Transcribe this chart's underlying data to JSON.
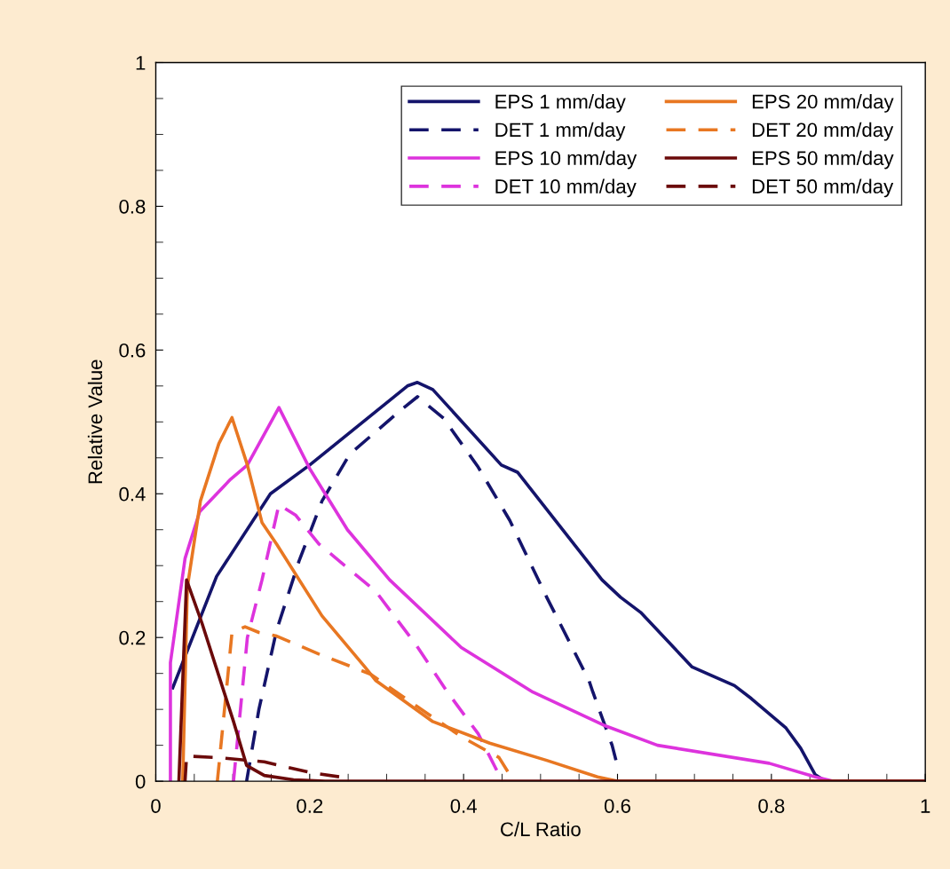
{
  "chart_data": {
    "type": "line",
    "xlabel": "C/L Ratio",
    "ylabel": "Relative Value",
    "xlim": [
      0,
      1
    ],
    "xticks": [
      0,
      0.2,
      0.4,
      0.6,
      0.8,
      1
    ],
    "ylim": [
      0,
      1
    ],
    "yticks": [
      0,
      0.2,
      0.4,
      0.6,
      0.8,
      1
    ],
    "grid": false,
    "legend": "top right",
    "marker": "none",
    "series": [
      {
        "name": "EPS 1 mm/day",
        "color": "#14146b",
        "line_style": "solid",
        "x": [
          0.022,
          0.079,
          0.149,
          0.2,
          0.327,
          0.34,
          0.36,
          0.449,
          0.47,
          0.58,
          0.604,
          0.63,
          0.697,
          0.752,
          0.774,
          0.819,
          0.838,
          0.857,
          0.87,
          1.0
        ],
        "values": [
          0.13,
          0.285,
          0.4,
          0.44,
          0.55,
          0.555,
          0.545,
          0.44,
          0.43,
          0.28,
          0.256,
          0.235,
          0.159,
          0.133,
          0.115,
          0.074,
          0.046,
          0.009,
          0,
          0
        ]
      },
      {
        "name": "DET 1 mm/day",
        "color": "#14146b",
        "line_style": "dashed",
        "x": [
          0.118,
          0.134,
          0.157,
          0.186,
          0.216,
          0.252,
          0.319,
          0.34,
          0.374,
          0.419,
          0.46,
          0.508,
          0.563,
          0.568,
          0.593,
          0.599
        ],
        "values": [
          0,
          0.1,
          0.21,
          0.306,
          0.39,
          0.455,
          0.517,
          0.535,
          0.505,
          0.437,
          0.363,
          0.256,
          0.14,
          0.124,
          0.05,
          0.025
        ]
      },
      {
        "name": "EPS 10 mm/day",
        "color": "#dd33dd",
        "line_style": "solid",
        "x": [
          0.019,
          0.019,
          0.038,
          0.057,
          0.097,
          0.119,
          0.16,
          0.2,
          0.249,
          0.304,
          0.397,
          0.49,
          0.582,
          0.652,
          0.797,
          0.857,
          0.88,
          1.0
        ],
        "values": [
          0,
          0.165,
          0.31,
          0.375,
          0.42,
          0.44,
          0.52,
          0.435,
          0.35,
          0.28,
          0.186,
          0.124,
          0.078,
          0.05,
          0.025,
          0.006,
          0,
          0
        ]
      },
      {
        "name": "DET 10 mm/day",
        "color": "#dd33dd",
        "line_style": "dashed",
        "x": [
          0.101,
          0.119,
          0.138,
          0.16,
          0.182,
          0.212,
          0.286,
          0.338,
          0.379,
          0.419,
          0.446
        ],
        "values": [
          0,
          0.2,
          0.28,
          0.385,
          0.37,
          0.33,
          0.264,
          0.19,
          0.124,
          0.066,
          0.009
        ]
      },
      {
        "name": "EPS 20 mm/day",
        "color": "#e87722",
        "line_style": "solid",
        "x": [
          0.035,
          0.041,
          0.058,
          0.082,
          0.099,
          0.119,
          0.138,
          0.157,
          0.216,
          0.271,
          0.286,
          0.36,
          0.434,
          0.508,
          0.574,
          0.6,
          1.0
        ],
        "values": [
          0,
          0.27,
          0.39,
          0.47,
          0.506,
          0.44,
          0.36,
          0.33,
          0.23,
          0.16,
          0.14,
          0.083,
          0.053,
          0.029,
          0.006,
          0,
          0
        ]
      },
      {
        "name": "DET 20 mm/day",
        "color": "#e87722",
        "line_style": "dashed",
        "x": [
          0.08,
          0.093,
          0.099,
          0.116,
          0.134,
          0.157,
          0.212,
          0.279,
          0.341,
          0.397,
          0.446,
          0.46
        ],
        "values": [
          0,
          0.14,
          0.207,
          0.215,
          0.207,
          0.202,
          0.177,
          0.149,
          0.103,
          0.062,
          0.033,
          0.009
        ]
      },
      {
        "name": "EPS 50 mm/day",
        "color": "#6b0a0a",
        "line_style": "solid",
        "x": [
          0.03,
          0.04,
          0.06,
          0.101,
          0.118,
          0.141,
          0.179,
          0.22,
          1.0
        ],
        "values": [
          0,
          0.28,
          0.22,
          0.083,
          0.022,
          0.008,
          0.002,
          0,
          0
        ]
      },
      {
        "name": "DET 50 mm/day",
        "color": "#6b0a0a",
        "line_style": "dashed",
        "x": [
          0.038,
          0.04,
          0.079,
          0.141,
          0.201,
          0.252
        ],
        "values": [
          0,
          0.035,
          0.033,
          0.027,
          0.012,
          0.004
        ]
      }
    ]
  }
}
